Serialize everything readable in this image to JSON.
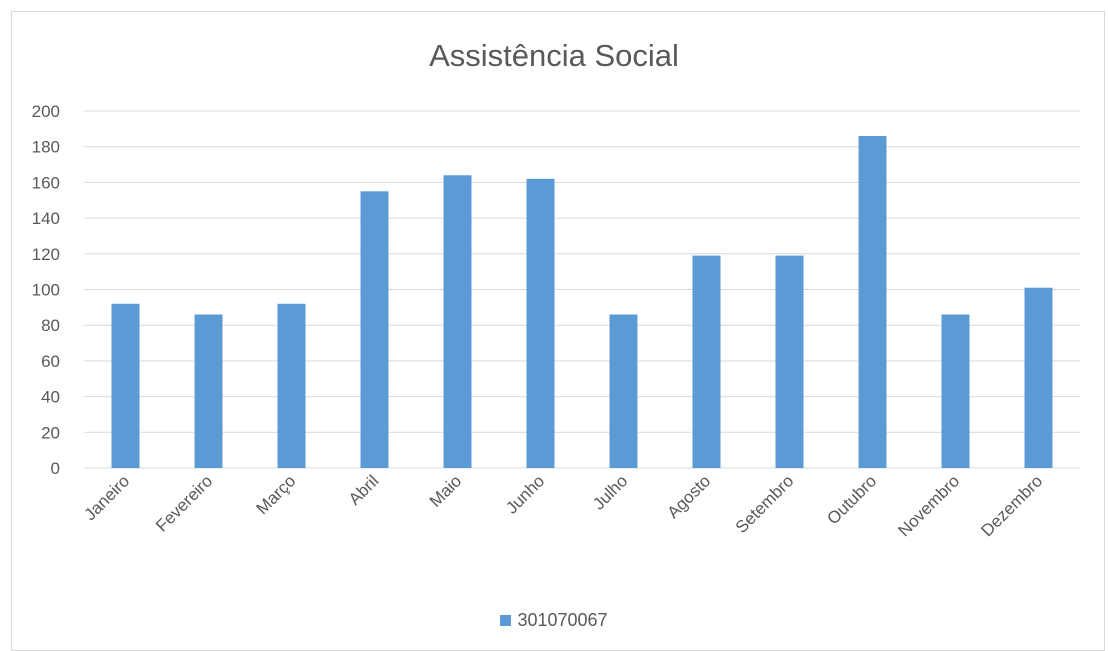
{
  "chart_data": {
    "type": "bar",
    "title": "Assistência Social",
    "categories": [
      "Janeiro",
      "Fevereiro",
      "Março",
      "Abril",
      "Maio",
      "Junho",
      "Julho",
      "Agosto",
      "Setembro",
      "Outubro",
      "Novembro",
      "Dezembro"
    ],
    "series": [
      {
        "name": "301070067",
        "color": "#5b9bd5",
        "values": [
          92,
          86,
          92,
          155,
          164,
          162,
          86,
          119,
          119,
          186,
          86,
          101
        ]
      }
    ],
    "yticks": [
      "0",
      "20",
      "40",
      "60",
      "80",
      "100",
      "120",
      "140",
      "160",
      "180",
      "200"
    ],
    "ylim": [
      0,
      200
    ],
    "grid": true,
    "legend_position": "bottom"
  },
  "colors": {
    "bar": "#5b9bd5",
    "grid": "#d9d9d9",
    "text": "#595959"
  }
}
